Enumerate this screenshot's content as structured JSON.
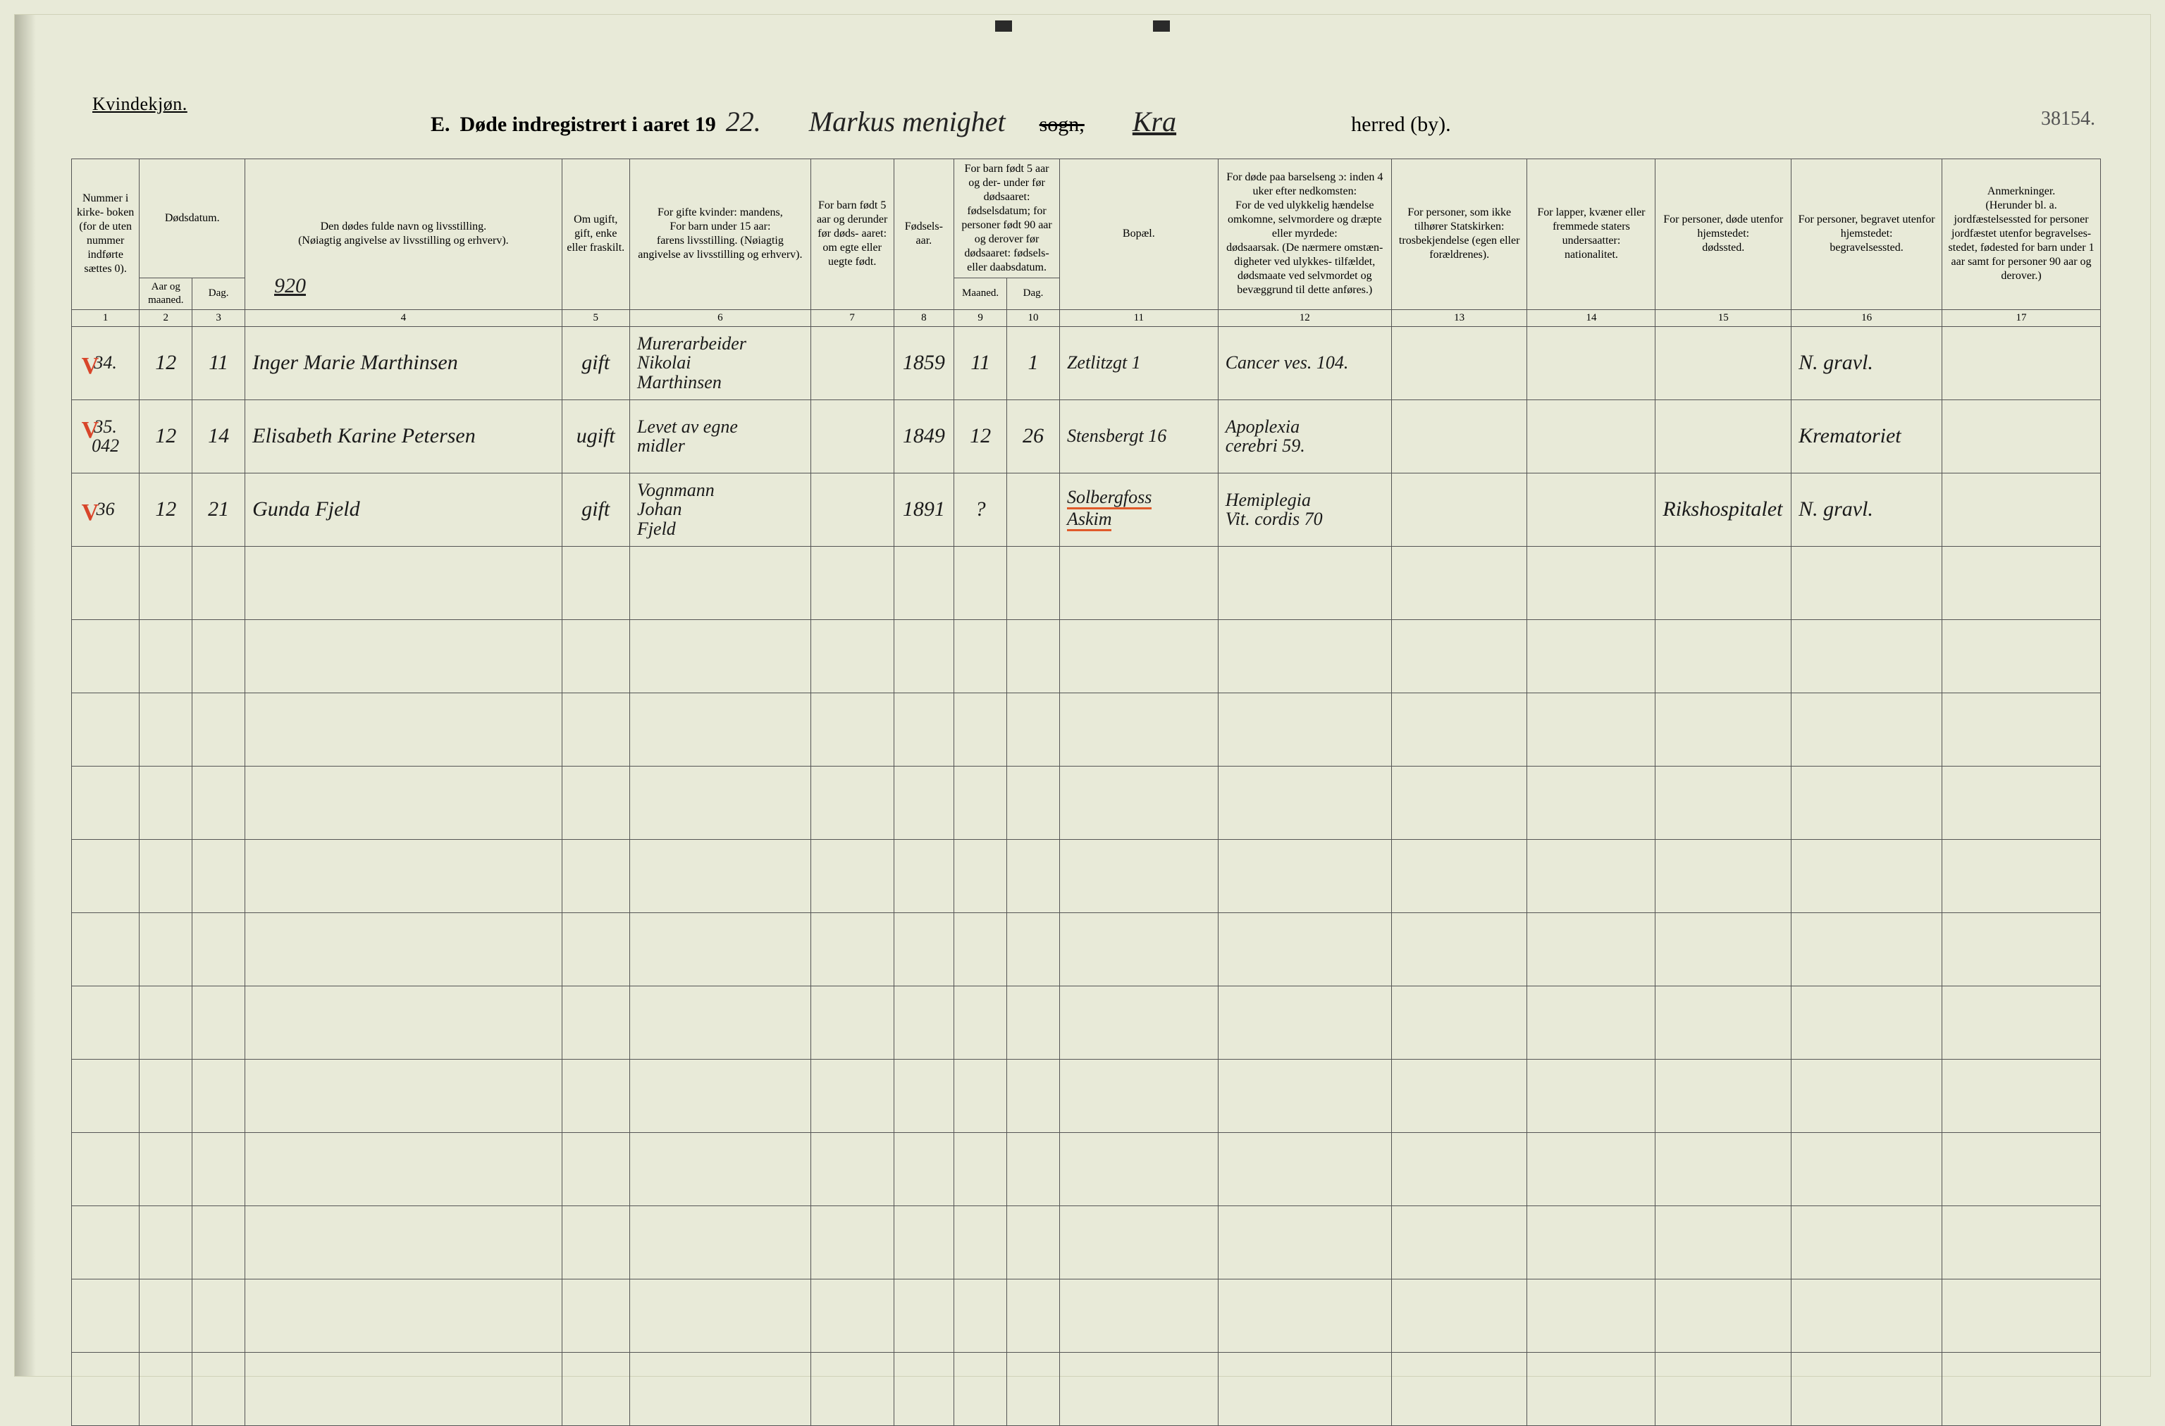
{
  "header": {
    "gender_label": "Kvindekjøn.",
    "title_prefix": "E.",
    "title_main": "Døde indregistrert i aaret 19",
    "year_hand": "22.",
    "parish_hand": "Markus menighet",
    "sogn_struck": "sogn,",
    "district_hand": "Kra",
    "herred": "herred (by).",
    "page_number": "38154."
  },
  "columns": {
    "c1": "Nummer i kirke- boken (for de uten nummer indførte sættes 0).",
    "c2_top": "Dødsdatum.",
    "c2_a": "Aar og maaned.",
    "c2_b": "Dag.",
    "c4_top": "Den dødes fulde navn og livsstilling.",
    "c4_sub": "(Nøiagtig angivelse av livsstilling og erhverv).",
    "c5": "Om ugift, gift, enke eller fraskilt.",
    "c6_top": "For gifte kvinder: mandens,",
    "c6_mid": "For barn under 15 aar:",
    "c6_sub": "farens livsstilling. (Nøiagtig angivelse av livsstilling og erhverv).",
    "c7": "For barn født 5 aar og derunder før døds- aaret: om egte eller uegte født.",
    "c8": "Fødsels- aar.",
    "c9_10_top": "For barn født 5 aar og der- under før dødsaaret: fødselsdatum; for personer født 90 aar og derover før dødsaaret: fødsels- eller daabsdatum.",
    "c9": "Maaned.",
    "c10": "Dag.",
    "c11": "Bopæl.",
    "c12_top": "For døde paa barselseng ɔ: inden 4 uker efter nedkomsten:",
    "c12_mid": "For de ved ulykkelig hændelse omkomne, selvmordere og dræpte eller myrdede:",
    "c12_sub": "dødsaarsak. (De nærmere omstæn- digheter ved ulykkes- tilfældet, dødsmaate ved selvmordet og bevæggrund til dette anføres.)",
    "c13_top": "For personer, som ikke tilhører Statskirken:",
    "c13_sub": "trosbekjendelse (egen eller forældrenes).",
    "c14_top": "For lapper, kvæner eller fremmede staters undersaatter:",
    "c14_sub": "nationalitet.",
    "c15_top": "For personer, døde utenfor hjemstedet:",
    "c15_sub": "dødssted.",
    "c16_top": "For personer, begravet utenfor hjemstedet:",
    "c16_sub": "begravelsessted.",
    "c17_top": "Anmerkninger.",
    "c17_sub": "(Herunder bl. a. jordfæstelsessted for personer jordfæstet utenfor begravelses- stedet, fødested for barn under 1 aar samt for personer 90 aar og derover.)"
  },
  "colnums": [
    "1",
    "2",
    "3",
    "4",
    "5",
    "6",
    "7",
    "8",
    "9",
    "10",
    "11",
    "12",
    "13",
    "14",
    "15",
    "16",
    "17"
  ],
  "note920": "920",
  "rows": [
    {
      "check": "V",
      "num": "34.",
      "mnd": "12",
      "dag": "11",
      "name": "Inger Marie Marthinsen",
      "status": "gift",
      "spouse": "Murerarbeider\nNikolai\nMarthinsen",
      "c7": "",
      "birthyear": "1859",
      "bm": "11",
      "bd": "1",
      "residence": "Zetlitzgt 1",
      "cause": "Cancer ves. 104.",
      "c13": "",
      "c14": "",
      "c15": "",
      "burial": "N. gravl.",
      "remark": ""
    },
    {
      "check": "V",
      "num": "35.\n042",
      "mnd": "12",
      "dag": "14",
      "name": "Elisabeth Karine Petersen",
      "status": "ugift",
      "spouse": "Levet av egne\nmidler",
      "c7": "",
      "birthyear": "1849",
      "bm": "12",
      "bd": "26",
      "residence": "Stensbergt 16",
      "cause": "Apoplexia\ncerebri 59.",
      "c13": "",
      "c14": "",
      "c15": "",
      "burial": "Krematoriet",
      "remark": ""
    },
    {
      "check": "V",
      "num": "36",
      "mnd": "12",
      "dag": "21",
      "name": "Gunda Fjeld",
      "status": "gift",
      "spouse": "Vognmann\nJohan\nFjeld",
      "c7": "",
      "birthyear": "1891",
      "bm": "?",
      "bd": "",
      "residence": "Solbergfoss\nAskim",
      "residence_underline": true,
      "cause": "Hemiplegia\nVit. cordis 70",
      "c13": "",
      "c14": "",
      "c15": "Rikshospitalet",
      "burial": "N. gravl.",
      "remark": ""
    }
  ],
  "empty_rows": 12,
  "colors": {
    "paper": "#e8ead8",
    "ink": "#1a1a1a",
    "rule": "#555555",
    "red": "#e05a2a"
  }
}
